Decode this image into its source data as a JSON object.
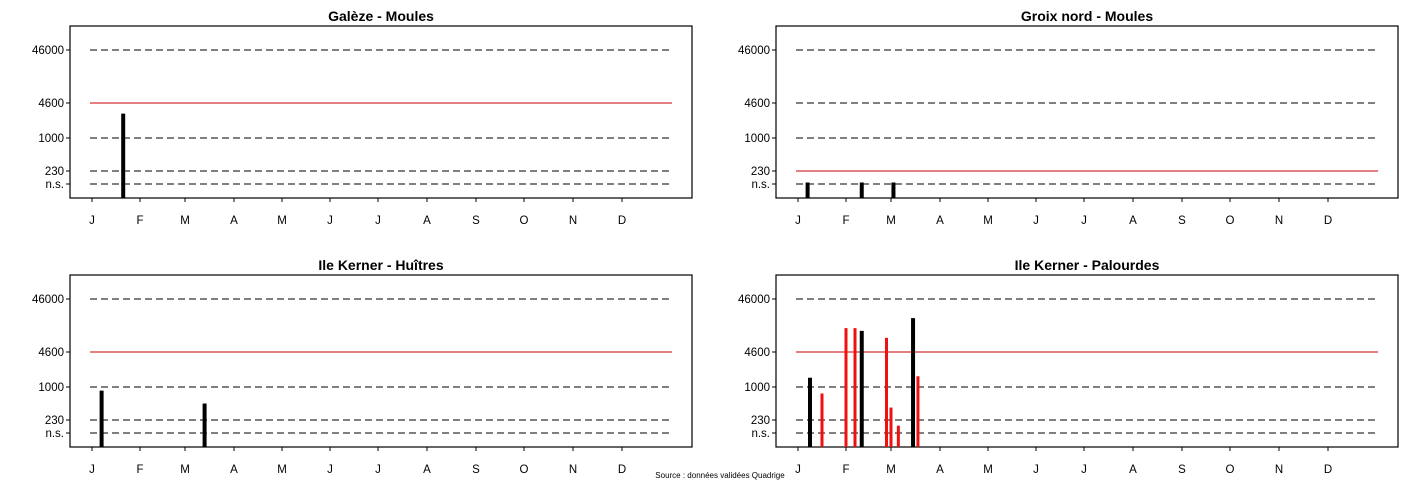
{
  "source": "Source : données validées Quadrige",
  "colors": {
    "regular": "#000000",
    "alert": "#ee1111",
    "threshold": "#cc0000",
    "gridline": "#000000"
  },
  "chart_data": [
    {
      "type": "bar",
      "title": "Galèze - Moules",
      "months": [
        "J",
        "F",
        "M",
        "A",
        "M",
        "J",
        "J",
        "A",
        "S",
        "O",
        "N",
        "D"
      ],
      "yticks": [
        "n.s.",
        "230",
        "1000",
        "4600",
        "46000"
      ],
      "threshold": "4600",
      "bars": [
        {
          "month": 1.65,
          "value": 2900,
          "color": "black"
        }
      ]
    },
    {
      "type": "bar",
      "title": "Groix nord - Moules",
      "months": [
        "J",
        "F",
        "M",
        "A",
        "M",
        "J",
        "J",
        "A",
        "S",
        "O",
        "N",
        "D"
      ],
      "yticks": [
        "n.s.",
        "230",
        "1000",
        "4600",
        "46000"
      ],
      "threshold": "230",
      "bars": [
        {
          "month": 1.2,
          "value": 110,
          "color": "black"
        },
        {
          "month": 2.35,
          "value": 110,
          "color": "black"
        },
        {
          "month": 3.05,
          "value": 110,
          "color": "black"
        }
      ]
    },
    {
      "type": "bar",
      "title": "Ile Kerner - Huîtres",
      "months": [
        "J",
        "F",
        "M",
        "A",
        "M",
        "J",
        "J",
        "A",
        "S",
        "O",
        "N",
        "D"
      ],
      "yticks": [
        "n.s.",
        "230",
        "1000",
        "4600",
        "46000"
      ],
      "threshold": "4600",
      "bars": [
        {
          "month": 1.2,
          "value": 850,
          "color": "black"
        },
        {
          "month": 3.4,
          "value": 480,
          "color": "black"
        }
      ]
    },
    {
      "type": "bar",
      "title": "Ile Kerner - Palourdes",
      "months": [
        "J",
        "F",
        "M",
        "A",
        "M",
        "J",
        "J",
        "A",
        "S",
        "O",
        "N",
        "D"
      ],
      "yticks": [
        "n.s.",
        "230",
        "1000",
        "4600",
        "46000"
      ],
      "threshold": "4600",
      "bars": [
        {
          "month": 1.25,
          "value": 1500,
          "color": "black"
        },
        {
          "month": 1.5,
          "value": 750,
          "color": "red"
        },
        {
          "month": 2.0,
          "value": 13000,
          "color": "red"
        },
        {
          "month": 2.2,
          "value": 13000,
          "color": "red"
        },
        {
          "month": 2.35,
          "value": 11500,
          "color": "black"
        },
        {
          "month": 2.9,
          "value": 8500,
          "color": "red"
        },
        {
          "month": 3.0,
          "value": 400,
          "color": "red"
        },
        {
          "month": 3.15,
          "value": 160,
          "color": "red"
        },
        {
          "month": 3.45,
          "value": 20000,
          "color": "black"
        },
        {
          "month": 3.55,
          "value": 1600,
          "color": "red"
        }
      ]
    }
  ]
}
